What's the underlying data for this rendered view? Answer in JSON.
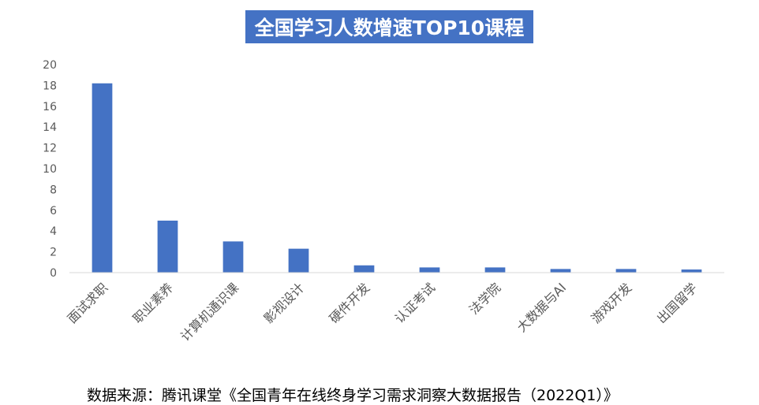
{
  "chart_data": {
    "type": "bar",
    "title": "全国学习人数增速TOP10课程",
    "categories": [
      "面试求职",
      "职业素养",
      "计算机通识课",
      "影视设计",
      "硬件开发",
      "认证考试",
      "法学院",
      "大数据与AI",
      "游戏开发",
      "出国留学"
    ],
    "values": [
      18.2,
      5.0,
      3.0,
      2.3,
      0.7,
      0.5,
      0.5,
      0.35,
      0.35,
      0.3
    ],
    "ylim": [
      0,
      20
    ],
    "yticks": [
      "0",
      "2",
      "4",
      "6",
      "8",
      "10",
      "12",
      "14",
      "16",
      "18",
      "20"
    ],
    "xlabel": "",
    "ylabel": "",
    "grid": false,
    "bar_color": "#4472c4"
  },
  "source": "数据来源：腾讯课堂《全国青年在线终身学习需求洞察大数据报告（2022Q1）》"
}
